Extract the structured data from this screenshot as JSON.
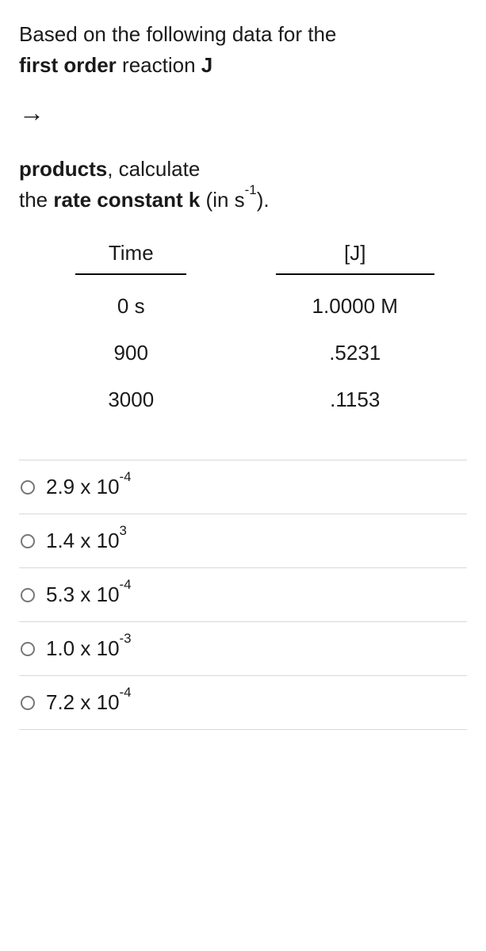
{
  "question": {
    "line1_a": "Based on the following data for the",
    "line1_b_bold": "first order",
    "line1_c": " reaction ",
    "line1_d_bold": "J",
    "arrow": "→",
    "line2_a_bold": "products",
    "line2_b": ",  calculate",
    "line3_a": "the ",
    "line3_b_bold": "rate constant k",
    "line3_c": " (in s",
    "line3_sup": "-1",
    "line3_d": ")."
  },
  "table": {
    "headers": [
      "Time",
      "[J]"
    ],
    "rows": [
      [
        " 0 s",
        "1.0000 M"
      ],
      [
        " 900",
        ".5231"
      ],
      [
        "3000",
        ".1153"
      ]
    ]
  },
  "options": [
    {
      "coef": "2.9",
      "exp": "-4"
    },
    {
      "coef": "1.4",
      "exp": "3"
    },
    {
      "coef": "5.3",
      "exp": "-4"
    },
    {
      "coef": "1.0",
      "exp": "-3"
    },
    {
      "coef": "7.2",
      "exp": "-4"
    }
  ]
}
